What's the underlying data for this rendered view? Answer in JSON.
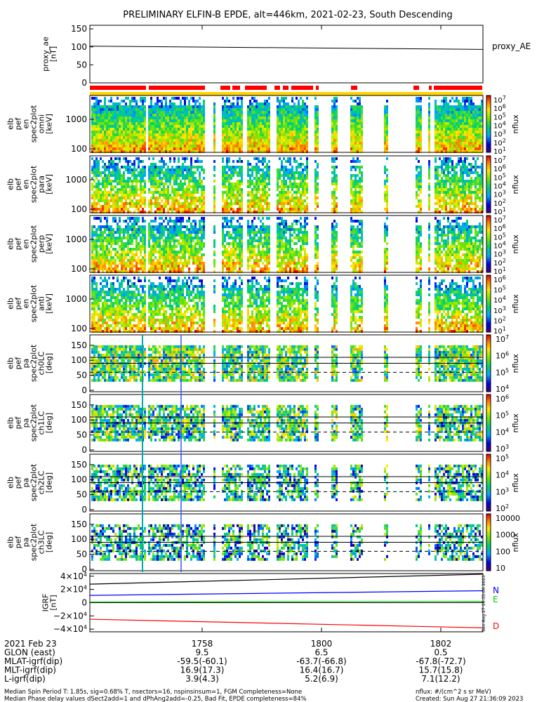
{
  "figure": {
    "title": "PRELIMINARY ELFIN-B EPDE, alt=446km, 2021-02-23, South Descending",
    "side_stamp": "Sun Aug 27 14:35:06 2023"
  },
  "colors": {
    "axes": "#000000",
    "bar_red": "#ff0000",
    "bar_yellow": "#ffd400",
    "field_N": "#0000ff",
    "field_E": "#00cc00",
    "field_D": "#ff0000"
  },
  "panels": {
    "proxy_ae": {
      "ylabel": [
        "proxy_ae",
        "[nT]"
      ],
      "series_label": "proxy_AE",
      "yticks": [
        "150",
        "100",
        "50",
        "0"
      ]
    },
    "energy": [
      {
        "ylabel": [
          "elb",
          "pef",
          "en",
          "spec2plot",
          "omni",
          "[keV]"
        ],
        "yticks": [
          "1000",
          "100"
        ],
        "cbar_label": "nflux",
        "cbar_ticks": [
          "10^7",
          "10^6",
          "10^5",
          "10^4",
          "10^3",
          "10^2",
          "10^1"
        ]
      },
      {
        "ylabel": [
          "elb",
          "pef",
          "en",
          "spec2plot",
          "para",
          "[keV]"
        ],
        "yticks": [
          "1000",
          "100"
        ],
        "cbar_label": "nflux",
        "cbar_ticks": [
          "10^7",
          "10^6",
          "10^5",
          "10^4",
          "10^3",
          "10^2",
          "10^1"
        ]
      },
      {
        "ylabel": [
          "elb",
          "pef",
          "en",
          "spec2plot",
          "perp",
          "[keV]"
        ],
        "yticks": [
          "1000",
          "100"
        ],
        "cbar_label": "nflux",
        "cbar_ticks": [
          "10^7",
          "10^6",
          "10^5",
          "10^4",
          "10^3",
          "10^2",
          "10^1"
        ]
      },
      {
        "ylabel": [
          "elb",
          "pef",
          "en",
          "spec2plot",
          "anti",
          "[keV]"
        ],
        "yticks": [
          "1000",
          "100"
        ],
        "cbar_label": "nflux",
        "cbar_ticks": [
          "10^6",
          "10^5",
          "10^4",
          "10^3",
          "10^2",
          "10^1"
        ]
      }
    ],
    "pitch": [
      {
        "ylabel": [
          "elb",
          "pef",
          "pa",
          "spec2plot",
          "ch0LC",
          "[deg]"
        ],
        "yticks": [
          "150",
          "100",
          "50",
          "0"
        ],
        "cbar_label": "nflux",
        "cbar_ticks": [
          "10^7",
          "10^6",
          "10^5",
          "10^4"
        ]
      },
      {
        "ylabel": [
          "elb",
          "pef",
          "pa",
          "spec2plot",
          "ch1LC",
          "[deg]"
        ],
        "yticks": [
          "150",
          "100",
          "50",
          "0"
        ],
        "cbar_label": "nflux",
        "cbar_ticks": [
          "10^6",
          "10^5",
          "10^4",
          "10^3"
        ]
      },
      {
        "ylabel": [
          "elb",
          "pef",
          "pa",
          "spec2plot",
          "ch2LC",
          "[deg]"
        ],
        "yticks": [
          "150",
          "100",
          "50",
          "0"
        ],
        "cbar_label": "nflux",
        "cbar_ticks": [
          "10^5",
          "10^4",
          "10^3",
          "10^2"
        ]
      },
      {
        "ylabel": [
          "elb",
          "pef",
          "pa",
          "spec2plot",
          "ch3LC",
          "[deg]"
        ],
        "yticks": [
          "150",
          "100",
          "50",
          "0"
        ],
        "cbar_label": "nflux",
        "cbar_ticks": [
          "10000",
          "1000",
          "100",
          "10"
        ]
      }
    ],
    "igrf": {
      "ylabel": [
        "IGRF",
        "[nT]"
      ],
      "yticks": [
        "4×10^4",
        "2×10^4",
        "0",
        "−2×10^4",
        "−4×10^4"
      ],
      "components": [
        "N",
        "E",
        "D"
      ]
    }
  },
  "chart_data": {
    "type": "line",
    "x_unit": "UT (HHMM)",
    "x_ticks": [
      "1758",
      "1800",
      "1802"
    ],
    "proxy_ae": {
      "name": "proxy_AE",
      "x": [
        "start",
        "end"
      ],
      "values": [
        102,
        93
      ],
      "ylim": [
        0,
        160
      ]
    },
    "igrf_components": [
      {
        "name": "N",
        "start": 11000,
        "end": 18000
      },
      {
        "name": "E",
        "start": 1000,
        "end": 2000
      },
      {
        "name": "D",
        "start": -25000,
        "end": -38000
      },
      {
        "name": "total",
        "start": 28000,
        "end": 43000
      }
    ],
    "pitch_reference_lines": [
      60,
      90,
      110
    ]
  },
  "footer": {
    "rows": [
      {
        "label": "2021 Feb 23",
        "values": [
          "1758",
          "1800",
          "1802"
        ]
      },
      {
        "label": "GLON (east)",
        "values": [
          "9.5",
          "6.5",
          "0.5"
        ]
      },
      {
        "label": "MLAT-igrf(dip)",
        "values": [
          "-59.5(-60.1)",
          "-63.7(-66.8)",
          "-67.8(-72.7)"
        ]
      },
      {
        "label": "MLT-igrf(dip)",
        "values": [
          "16.9(17.3)",
          "16.4(16.7)",
          "15.7(15.8)"
        ]
      },
      {
        "label": "L-igrf(dip)",
        "values": [
          "3.9(4.3)",
          "5.2(6.9)",
          "7.1(12.2)"
        ]
      }
    ],
    "note_left_1": "Median Spin Period T: 1.85s, sig=0.68% T, nsectors=16, nspinsinsum=1, FGM Completeness=None",
    "note_left_2": "Median Phase delay values dSect2add=1 and dPhAng2add=-0.25, Bad Fit, EPDE completeness=84%",
    "note_right_1": "nflux: #/(cm^2 s sr MeV)",
    "note_right_2": "Created: Sun Aug 27 21:36:09 2023"
  }
}
